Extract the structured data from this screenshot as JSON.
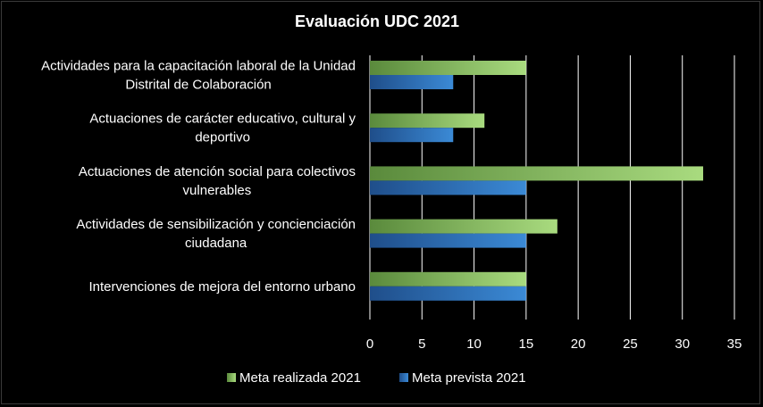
{
  "chart_data": {
    "type": "bar",
    "orientation": "horizontal",
    "title": "Evaluación UDC 2021",
    "categories": [
      [
        "Actividades para la capacitación laboral de la Unidad",
        "Distrital de Colaboración"
      ],
      [
        "Actuaciones de carácter educativo, cultural y",
        "deportivo"
      ],
      [
        "Actuaciones de atención social para colectivos",
        "vulnerables"
      ],
      [
        "Actividades de sensibilización y concienciación",
        "ciudadana"
      ],
      [
        "Intervenciones  de mejora del entorno urbano"
      ]
    ],
    "series": [
      {
        "name": "Meta realizada 2021",
        "values": [
          15,
          11,
          32,
          18,
          15
        ],
        "color": "#92d050"
      },
      {
        "name": "Meta prevista 2021",
        "values": [
          8,
          8,
          15,
          15,
          15
        ],
        "color": "#2e75b6"
      }
    ],
    "xlim": [
      0,
      35
    ],
    "ticks": [
      "0",
      "5",
      "10",
      "15",
      "20",
      "25",
      "30",
      "35"
    ],
    "grid": true,
    "legend_position": "bottom",
    "background": "#000000"
  }
}
